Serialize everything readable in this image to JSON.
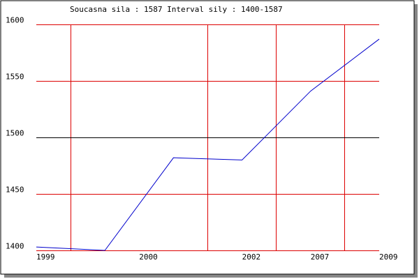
{
  "chart_data": {
    "type": "line",
    "title": "Soucasna sila : 1587  Interval sily : 1400-1587",
    "x": [
      0,
      1,
      2,
      3,
      4,
      5
    ],
    "xlim": [
      0,
      5
    ],
    "xticks": [
      {
        "value": 0,
        "label": "1999"
      },
      {
        "value": 1.5,
        "label": "2000"
      },
      {
        "value": 3,
        "label": "2002"
      },
      {
        "value": 4,
        "label": "2007"
      },
      {
        "value": 5,
        "label": "2009"
      }
    ],
    "series": [
      {
        "color": "#0000cc",
        "values": [
          1403,
          1400,
          1482,
          1480,
          1541,
          1587
        ]
      }
    ],
    "ylim": [
      1400,
      1600
    ],
    "yticks": [
      1400,
      1450,
      1500,
      1550,
      1600
    ],
    "grid": true,
    "grid_color": "#dd0000",
    "highlight_tick": 1500
  }
}
